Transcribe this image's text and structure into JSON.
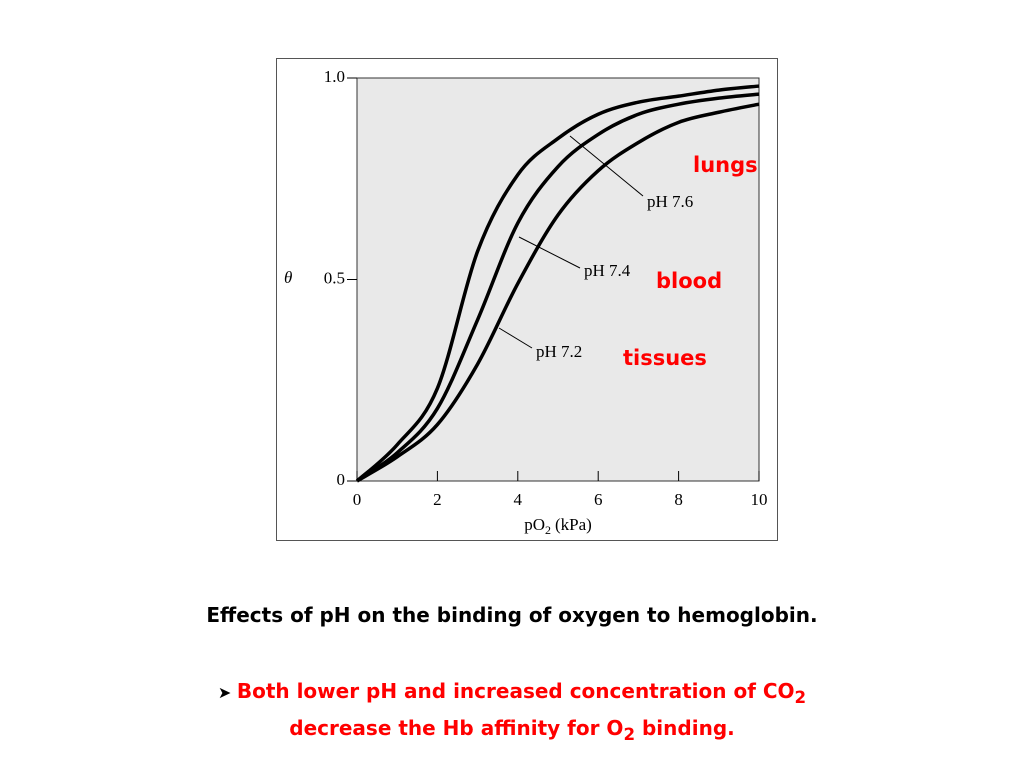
{
  "chart_data": {
    "type": "line",
    "x_label": "pO",
    "x_label_sub": "2",
    "x_label_unit": "(kPa)",
    "y_label": "θ",
    "x": [
      0,
      1,
      2,
      3,
      4,
      5,
      6,
      7,
      8,
      9,
      10
    ],
    "series": [
      {
        "name": "pH 7.6",
        "color": "#000000",
        "values": [
          0,
          0.09,
          0.23,
          0.57,
          0.76,
          0.85,
          0.91,
          0.94,
          0.955,
          0.97,
          0.98
        ]
      },
      {
        "name": "pH 7.4",
        "color": "#000000",
        "values": [
          0,
          0.07,
          0.18,
          0.4,
          0.64,
          0.78,
          0.86,
          0.91,
          0.935,
          0.95,
          0.96
        ]
      },
      {
        "name": "pH 7.2",
        "color": "#000000",
        "values": [
          0,
          0.06,
          0.14,
          0.29,
          0.49,
          0.66,
          0.77,
          0.84,
          0.89,
          0.915,
          0.935
        ]
      }
    ],
    "xlim": [
      0,
      10
    ],
    "xticks": [
      0,
      2,
      4,
      6,
      8,
      10
    ],
    "ylim": [
      0,
      1
    ],
    "yticks": [
      0,
      0.5,
      {
        "value": 1,
        "label": "1.0"
      }
    ],
    "annotations": [
      "lungs",
      "blood",
      "tissues"
    ]
  },
  "caption": "Effects of pH on the binding of oxygen to hemoglobin.",
  "bullet": {
    "part1": "Both lower pH and increased concentration of CO",
    "sub1": "2",
    "part2": "decrease the Hb affinity for O",
    "sub2": "2",
    "part3": " binding."
  }
}
